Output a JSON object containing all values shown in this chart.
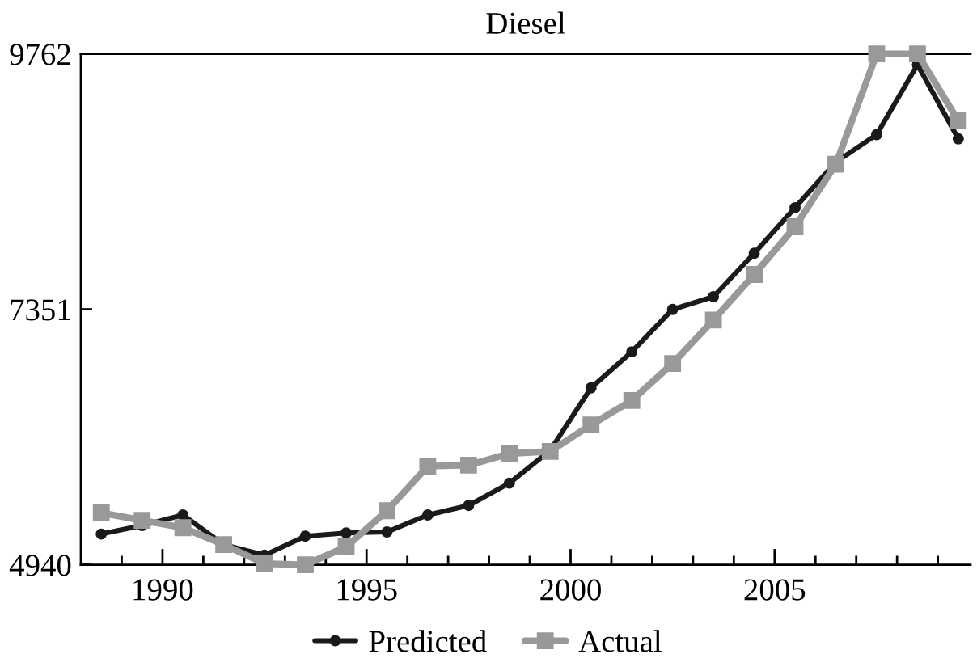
{
  "chart_data": {
    "type": "line",
    "title": "Diesel",
    "x": [
      1988.5,
      1989.5,
      1990.5,
      1991.5,
      1992.5,
      1993.5,
      1994.5,
      1995.5,
      1996.5,
      1997.5,
      1998.5,
      1999.5,
      2000.5,
      2001.5,
      2002.5,
      2003.5,
      2004.5,
      2005.5,
      2006.5,
      2007.5,
      2008.5,
      2009.5
    ],
    "xlim": [
      1988,
      2009.8
    ],
    "xticks": [
      {
        "value": 1989,
        "label": null
      },
      1990,
      {
        "value": 1991,
        "label": null
      },
      {
        "value": 1992,
        "label": null
      },
      {
        "value": 1993,
        "label": null
      },
      {
        "value": 1994,
        "label": null
      },
      1995,
      {
        "value": 1996,
        "label": null
      },
      {
        "value": 1997,
        "label": null
      },
      {
        "value": 1998,
        "label": null
      },
      {
        "value": 1999,
        "label": null
      },
      2000,
      {
        "value": 2001,
        "label": null
      },
      {
        "value": 2002,
        "label": null
      },
      {
        "value": 2003,
        "label": null
      },
      {
        "value": 2004,
        "label": null
      },
      2005,
      {
        "value": 2006,
        "label": null
      },
      {
        "value": 2007,
        "label": null
      },
      {
        "value": 2008,
        "label": null
      },
      {
        "value": 2009,
        "label": null
      }
    ],
    "ylim": [
      4940,
      9762
    ],
    "yticks": [
      4940,
      7351,
      9762
    ],
    "legend": "bottom",
    "line_style": "solid",
    "series": [
      {
        "name": "Predicted",
        "color": "#1a1a1a",
        "marker": "circle",
        "values": [
          5230,
          5310,
          5410,
          5130,
          5030,
          5210,
          5240,
          5250,
          5410,
          5500,
          5710,
          6020,
          6610,
          6950,
          7350,
          7470,
          7880,
          8310,
          8740,
          9000,
          9660,
          8960
        ]
      },
      {
        "name": "Actual",
        "color": "#999999",
        "marker": "square",
        "values": [
          5430,
          5360,
          5290,
          5130,
          4950,
          4940,
          5110,
          5450,
          5870,
          5880,
          5990,
          6010,
          6260,
          6490,
          6840,
          7250,
          7680,
          8130,
          8720,
          9762,
          9762,
          9130
        ]
      }
    ]
  }
}
